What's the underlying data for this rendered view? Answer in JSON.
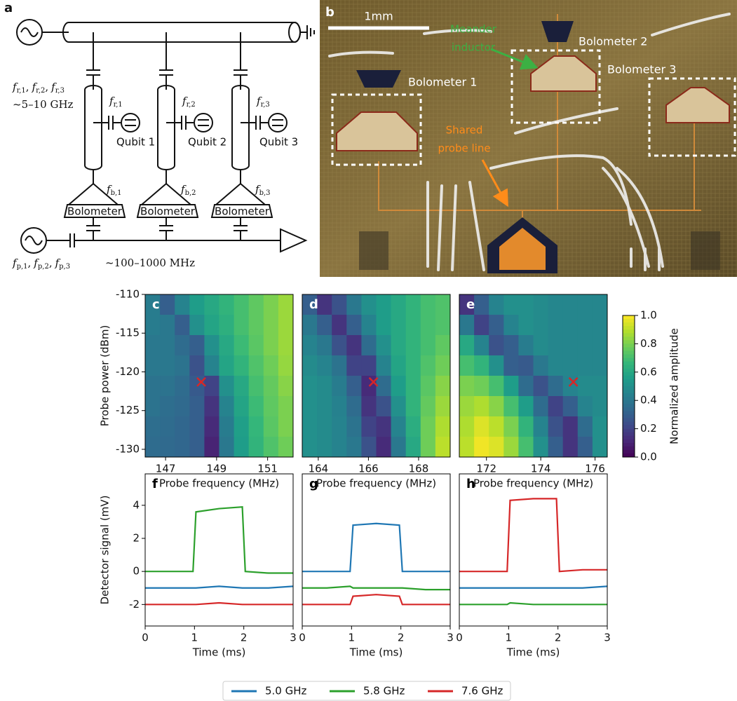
{
  "diagram": {
    "letter": "a",
    "symbol": "f",
    "list_separator": ",",
    "readout_subs": [
      "r,1",
      "r,2",
      "r,3"
    ],
    "readout_range": "~5–10 GHz",
    "probe_subs": [
      "p,1",
      "p,2",
      "p,3"
    ],
    "probe_range": "~100–1000 MHz",
    "bolometer_label": "Bolometer",
    "resonators": [
      {
        "readout": "r,1",
        "bolometer": "b,1",
        "qubit": "Qubit 1"
      },
      {
        "readout": "r,2",
        "bolometer": "b,2",
        "qubit": "Qubit 2"
      },
      {
        "readout": "r,3",
        "bolometer": "b,3",
        "qubit": "Qubit 3"
      }
    ]
  },
  "photo": {
    "letter": "b",
    "scale": "1mm",
    "meander": [
      "Meander",
      "inductor"
    ],
    "bolometers": [
      "Bolometer 1",
      "Bolometer 2",
      "Bolometer 3"
    ],
    "probe_line": [
      "Shared",
      "probe line"
    ]
  },
  "legend": [
    {
      "name": "5.0 GHz",
      "color": "#1f77b4"
    },
    {
      "name": "5.8 GHz",
      "color": "#2ca02c"
    },
    {
      "name": "7.6 GHz",
      "color": "#d62728"
    }
  ],
  "chart_data": [
    {
      "type": "heatmap",
      "label": "c",
      "xlabel": "Probe frequency (MHz)",
      "ylabel": "Probe power (dBm)",
      "xlim": [
        146.2,
        152
      ],
      "ylim": [
        -131,
        -110
      ],
      "xticks": [
        147,
        149,
        151
      ],
      "yticks": [
        -110,
        -115,
        -120,
        -125,
        -130
      ],
      "markers": [
        {
          "x": 148.4,
          "y": -121.3,
          "color": "#d62728"
        }
      ],
      "z": [
        [
          0.42,
          0.3,
          0.45,
          0.55,
          0.6,
          0.65,
          0.7,
          0.75,
          0.8,
          0.85
        ],
        [
          0.42,
          0.4,
          0.3,
          0.5,
          0.58,
          0.63,
          0.7,
          0.75,
          0.8,
          0.85
        ],
        [
          0.4,
          0.4,
          0.35,
          0.3,
          0.5,
          0.6,
          0.68,
          0.74,
          0.8,
          0.85
        ],
        [
          0.4,
          0.4,
          0.38,
          0.25,
          0.45,
          0.58,
          0.65,
          0.72,
          0.78,
          0.84
        ],
        [
          0.38,
          0.38,
          0.35,
          0.28,
          0.2,
          0.5,
          0.6,
          0.7,
          0.76,
          0.82
        ],
        [
          0.38,
          0.36,
          0.34,
          0.3,
          0.15,
          0.45,
          0.58,
          0.68,
          0.75,
          0.8
        ],
        [
          0.36,
          0.35,
          0.33,
          0.3,
          0.12,
          0.42,
          0.56,
          0.66,
          0.74,
          0.8
        ],
        [
          0.35,
          0.34,
          0.33,
          0.3,
          0.1,
          0.4,
          0.55,
          0.65,
          0.72,
          0.78
        ]
      ]
    },
    {
      "type": "heatmap",
      "label": "d",
      "xlabel": "Probe frequency (MHz)",
      "xlim": [
        163.36,
        169.26
      ],
      "ylim": [
        -131,
        -110
      ],
      "xticks": [
        164,
        166,
        168
      ],
      "markers": [
        {
          "x": 166.2,
          "y": -121.3,
          "color": "#d62728"
        }
      ],
      "z": [
        [
          0.3,
          0.15,
          0.25,
          0.4,
          0.5,
          0.55,
          0.6,
          0.65,
          0.7,
          0.72
        ],
        [
          0.4,
          0.3,
          0.15,
          0.3,
          0.45,
          0.55,
          0.6,
          0.65,
          0.7,
          0.72
        ],
        [
          0.45,
          0.4,
          0.25,
          0.15,
          0.35,
          0.5,
          0.6,
          0.65,
          0.7,
          0.75
        ],
        [
          0.48,
          0.45,
          0.38,
          0.2,
          0.2,
          0.45,
          0.58,
          0.65,
          0.72,
          0.78
        ],
        [
          0.5,
          0.48,
          0.42,
          0.3,
          0.12,
          0.35,
          0.55,
          0.65,
          0.74,
          0.82
        ],
        [
          0.5,
          0.48,
          0.44,
          0.35,
          0.15,
          0.25,
          0.5,
          0.65,
          0.76,
          0.85
        ],
        [
          0.5,
          0.48,
          0.45,
          0.38,
          0.2,
          0.15,
          0.45,
          0.62,
          0.78,
          0.88
        ],
        [
          0.5,
          0.48,
          0.45,
          0.4,
          0.25,
          0.12,
          0.4,
          0.6,
          0.78,
          0.9
        ]
      ]
    },
    {
      "type": "heatmap",
      "label": "e",
      "xlabel": "Probe frequency (MHz)",
      "xlim": [
        171.0,
        176.45
      ],
      "ylim": [
        -131,
        -110
      ],
      "xticks": [
        172,
        174,
        176
      ],
      "markers": [
        {
          "x": 175.2,
          "y": -121.3,
          "color": "#d62728"
        }
      ],
      "colorbar": {
        "label": "Normalized amplitude",
        "lim": [
          0,
          1
        ],
        "ticks": [
          {
            "value": 0,
            "label": "0.0"
          },
          0.2,
          0.4,
          0.6,
          0.8,
          {
            "value": 1,
            "label": "1.0"
          }
        ]
      },
      "z": [
        [
          0.15,
          0.3,
          0.45,
          0.5,
          0.5,
          0.48,
          0.46,
          0.46,
          0.46,
          0.46
        ],
        [
          0.4,
          0.2,
          0.3,
          0.45,
          0.5,
          0.48,
          0.46,
          0.46,
          0.46,
          0.46
        ],
        [
          0.6,
          0.45,
          0.25,
          0.3,
          0.42,
          0.48,
          0.46,
          0.46,
          0.46,
          0.46
        ],
        [
          0.7,
          0.65,
          0.5,
          0.3,
          0.28,
          0.4,
          0.46,
          0.46,
          0.46,
          0.46
        ],
        [
          0.8,
          0.78,
          0.7,
          0.55,
          0.35,
          0.25,
          0.35,
          0.45,
          0.48,
          0.48
        ],
        [
          0.85,
          0.88,
          0.82,
          0.7,
          0.55,
          0.35,
          0.2,
          0.3,
          0.45,
          0.48
        ],
        [
          0.88,
          0.95,
          0.9,
          0.8,
          0.65,
          0.45,
          0.25,
          0.15,
          0.35,
          0.5
        ],
        [
          0.9,
          0.98,
          0.95,
          0.85,
          0.7,
          0.5,
          0.3,
          0.15,
          0.3,
          0.5
        ]
      ]
    },
    {
      "type": "line",
      "label": "f",
      "xlabel": "Time (ms)",
      "ylabel": "Detector signal (mV)",
      "xlim": [
        0,
        3
      ],
      "ylim": [
        -3.3,
        5.9
      ],
      "xticks": [
        0,
        1,
        2,
        3
      ],
      "yticks": [
        4,
        2,
        0,
        -2
      ],
      "x": [
        0,
        0.5,
        0.97,
        1.03,
        1.5,
        1.97,
        2.03,
        2.5,
        3
      ],
      "series": [
        {
          "color": "#1f77b4",
          "values": [
            -1,
            -1,
            -1,
            -1,
            -0.9,
            -1,
            -1,
            -1,
            -0.9
          ]
        },
        {
          "color": "#2ca02c",
          "values": [
            0,
            0,
            0,
            3.6,
            3.8,
            3.9,
            0,
            -0.1,
            -0.1
          ]
        },
        {
          "color": "#d62728",
          "values": [
            -2,
            -2,
            -2,
            -2,
            -1.9,
            -2,
            -2,
            -2,
            -2
          ]
        }
      ]
    },
    {
      "type": "line",
      "label": "g",
      "xlabel": "Time (ms)",
      "xlim": [
        0,
        3
      ],
      "ylim": [
        -3.3,
        5.9
      ],
      "xticks": [
        0,
        1,
        2,
        3
      ],
      "x": [
        0,
        0.5,
        0.97,
        1.03,
        1.5,
        1.97,
        2.03,
        2.5,
        3
      ],
      "series": [
        {
          "color": "#1f77b4",
          "values": [
            0,
            0,
            0,
            2.8,
            2.9,
            2.8,
            0,
            0,
            0
          ]
        },
        {
          "color": "#2ca02c",
          "values": [
            -1,
            -1,
            -0.9,
            -1,
            -1,
            -1,
            -1,
            -1.1,
            -1.1
          ]
        },
        {
          "color": "#d62728",
          "values": [
            -2,
            -2,
            -2,
            -1.5,
            -1.4,
            -1.5,
            -2,
            -2,
            -2
          ]
        }
      ]
    },
    {
      "type": "line",
      "label": "h",
      "xlabel": "Time (ms)",
      "xlim": [
        0,
        3
      ],
      "ylim": [
        -3.3,
        5.9
      ],
      "xticks": [
        0,
        1,
        2,
        3
      ],
      "x": [
        0,
        0.5,
        0.97,
        1.03,
        1.5,
        1.97,
        2.03,
        2.5,
        3
      ],
      "series": [
        {
          "color": "#1f77b4",
          "values": [
            -1,
            -1,
            -1,
            -1,
            -1,
            -1,
            -1,
            -1,
            -0.9
          ]
        },
        {
          "color": "#2ca02c",
          "values": [
            -2,
            -2,
            -2,
            -1.9,
            -2,
            -2,
            -2,
            -2,
            -2
          ]
        },
        {
          "color": "#d62728",
          "values": [
            0,
            0,
            0,
            4.3,
            4.4,
            4.4,
            0,
            0.1,
            0.1
          ]
        }
      ]
    }
  ]
}
